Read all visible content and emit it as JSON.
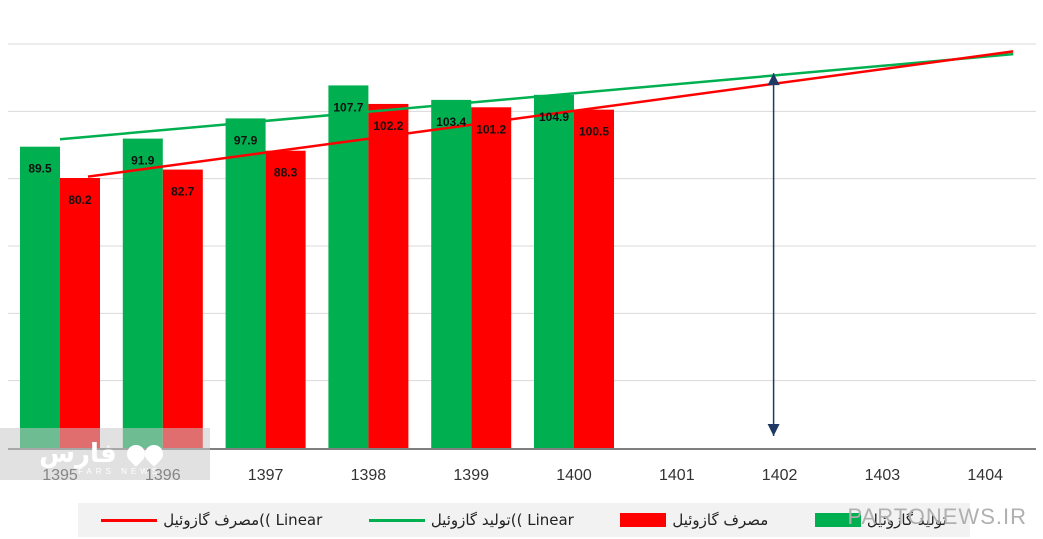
{
  "chart_data": {
    "type": "bar",
    "categories": [
      "1395",
      "1396",
      "1397",
      "1398",
      "1399",
      "1400",
      "1401",
      "1402",
      "1403",
      "1404"
    ],
    "series": [
      {
        "name": "تولید گازوئیل",
        "color": "#00b050",
        "values": [
          89.5,
          91.9,
          97.9,
          107.7,
          103.4,
          104.9,
          null,
          null,
          null,
          null
        ]
      },
      {
        "name": "مصرف گازوئیل",
        "color": "#ff0000",
        "values": [
          80.2,
          82.7,
          88.3,
          102.2,
          101.2,
          100.5,
          null,
          null,
          null,
          null
        ]
      }
    ],
    "trendlines": [
      {
        "name": "Linear ))تولید گازوئیل",
        "color": "#00b050",
        "y_start": 91.7,
        "y_end": 117.0
      },
      {
        "name": "Linear ))مصرف گازوئیل",
        "color": "#ff0000",
        "y_start": 80.6,
        "y_end": 117.8
      }
    ],
    "ylim": [
      0,
      120
    ],
    "grid": true,
    "legend": "bottom",
    "annotation": {
      "type": "double-arrow",
      "color": "#1f3864",
      "category": "1402",
      "y_top": 115.5,
      "y_bottom": 0
    }
  },
  "watermark": {
    "logo_text": "فارس",
    "logo_sub": "FARS NEWS"
  },
  "site_watermark": "PARTONEWS.IR"
}
